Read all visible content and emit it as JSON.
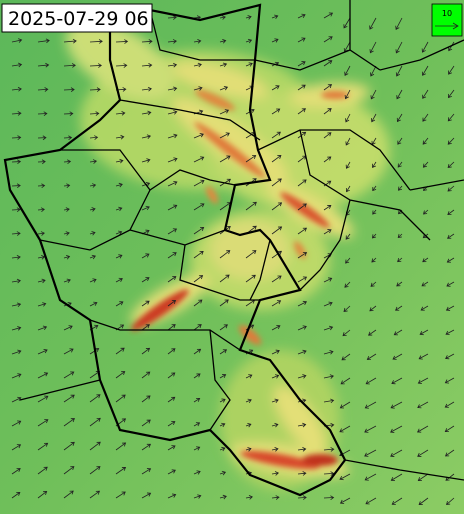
{
  "timestamp": "2025-07-29 06",
  "legend": {
    "label": "10"
  }
}
